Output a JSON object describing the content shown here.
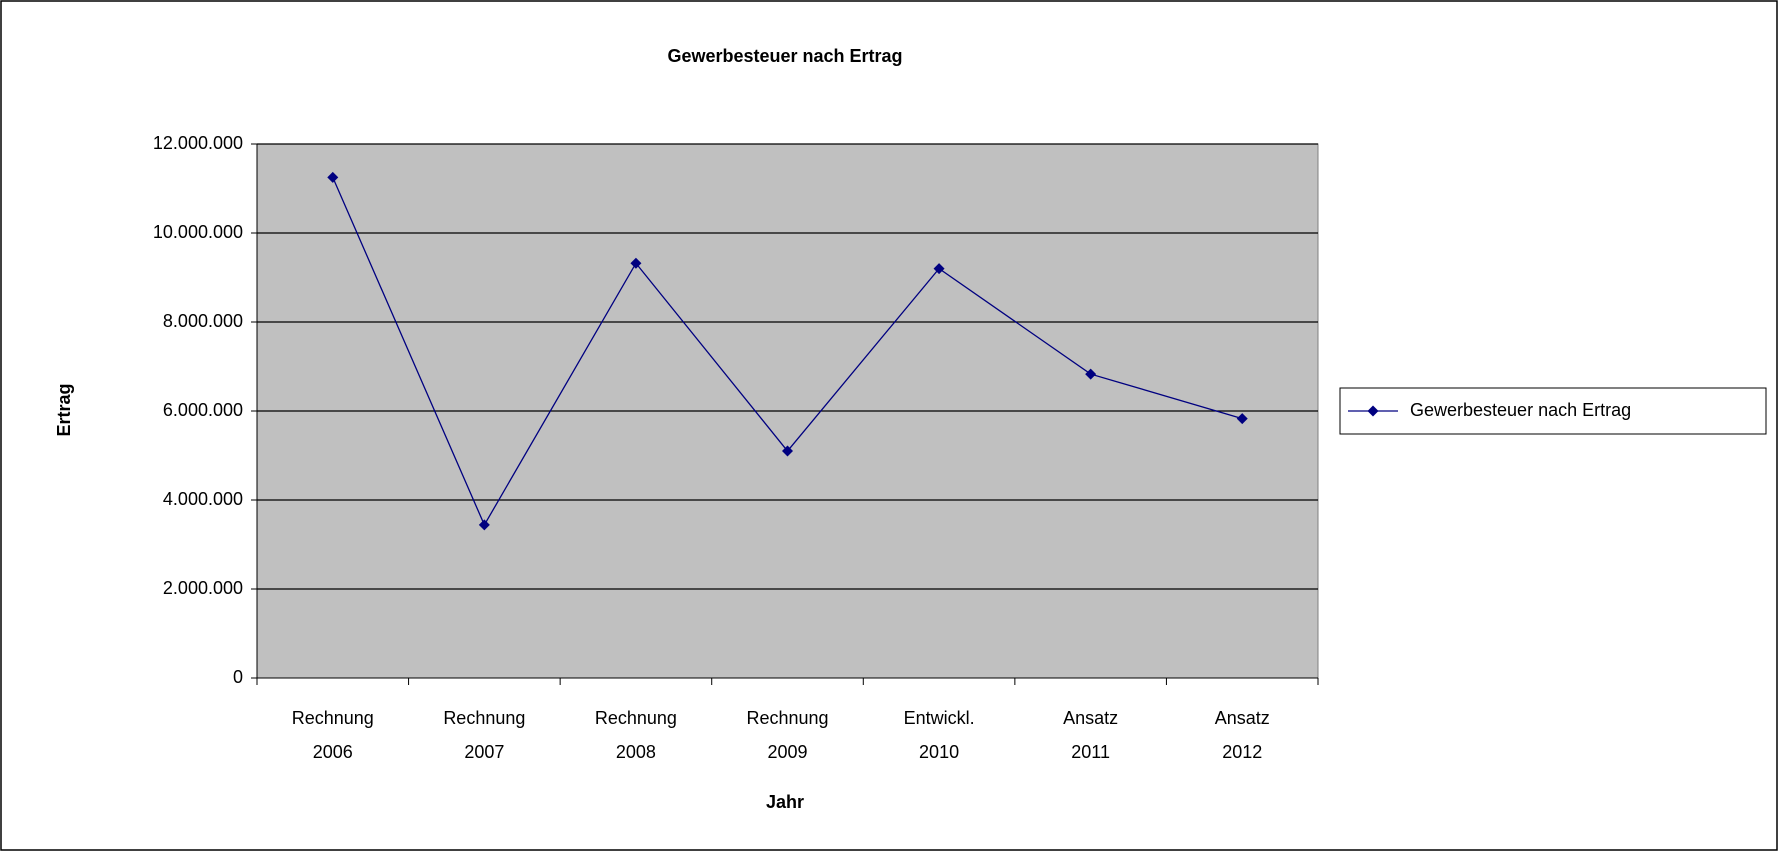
{
  "chart_data": {
    "type": "line",
    "title": "Gewerbesteuer nach Ertrag",
    "xlabel": "Jahr",
    "ylabel": "Ertrag",
    "categories": [
      "Rechnung 2006",
      "Rechnung 2007",
      "Rechnung 2008",
      "Rechnung 2009",
      "Entwickl. 2010",
      "Ansatz 2011",
      "Ansatz 2012"
    ],
    "series": [
      {
        "name": "Gewerbesteuer nach Ertrag",
        "color": "#000080",
        "values": [
          11250000,
          3440000,
          9320000,
          5100000,
          9200000,
          6830000,
          5830000
        ]
      }
    ],
    "ylim": [
      0,
      12000000
    ],
    "yticks": [
      0,
      {
        "value": 2000000,
        "label": "2.000.000"
      },
      {
        "value": 4000000,
        "label": "4.000.000"
      },
      {
        "value": 6000000,
        "label": "6.000.000"
      },
      {
        "value": 8000000,
        "label": "8.000.000"
      },
      {
        "value": 10000000,
        "label": "10.000.000"
      },
      {
        "value": 12000000,
        "label": "12.000.000"
      }
    ],
    "grid": true,
    "legend": "right"
  }
}
